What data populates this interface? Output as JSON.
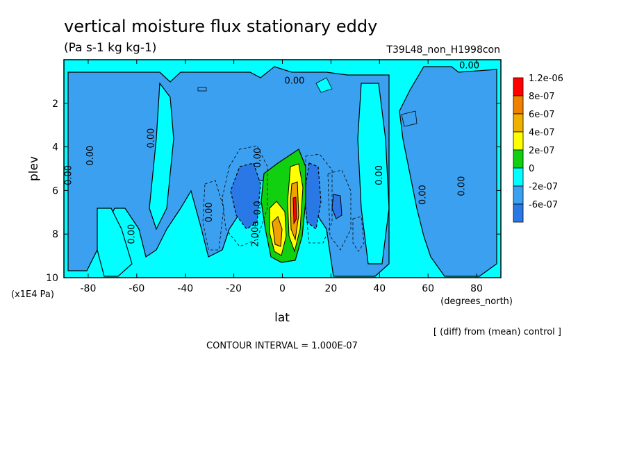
{
  "header": {
    "title": "vertical moisture flux stationary eddy",
    "units": "(Pa s-1 kg kg-1)",
    "experiment": "T39L48_non_H1998con"
  },
  "footer": {
    "diff_note": "[ (diff) from (mean) control ]",
    "contour_interval": "CONTOUR INTERVAL = 1.000E-07"
  },
  "colors": {
    "cyan": "#00ffff",
    "blue_mid": "#3ca0f0",
    "blue_dark": "#2a78e6",
    "green": "#10d010",
    "yellow": "#ffff00",
    "orange": "#f0a000",
    "red": "#ff0000"
  },
  "chart_data": {
    "type": "contour",
    "title": "vertical moisture flux stationary eddy",
    "xlabel": "lat",
    "xunits": "(degrees_north)",
    "ylabel": "plev",
    "yunits": "(x1E4 Pa)",
    "xlim": [
      -90,
      90
    ],
    "ylim": [
      10,
      0
    ],
    "xticks": [
      -80,
      -60,
      -40,
      -20,
      0,
      20,
      40,
      60,
      80
    ],
    "yticks": [
      2,
      4,
      6,
      8,
      10
    ],
    "legend": {
      "placement": "right",
      "entries": [
        {
          "label": "1.2e-06",
          "color": "#ff0000"
        },
        {
          "label": "8e-07",
          "color": "#f08000"
        },
        {
          "label": "6e-07",
          "color": "#f0b000"
        },
        {
          "label": "4e-07",
          "color": "#ffff00"
        },
        {
          "label": "2e-07",
          "color": "#10d010"
        },
        {
          "label": "0",
          "color": "#00ffff"
        },
        {
          "label": "-2e-07",
          "color": "#3ca0f0"
        },
        {
          "label": "-6e-07",
          "color": "#2a78e6"
        }
      ]
    },
    "contour_labels": [
      {
        "text": "0.00",
        "lat": 77,
        "plev": 0.4
      },
      {
        "text": "0.00",
        "lat": 5,
        "plev": 1.1
      },
      {
        "text": "0.00",
        "lat": -87,
        "plev": 5.3
      },
      {
        "text": "0.00",
        "lat": -78,
        "plev": 4.4
      },
      {
        "text": "0.00",
        "lat": -53,
        "plev": 3.6
      },
      {
        "text": "0.00",
        "lat": -29,
        "plev": 7.0
      },
      {
        "text": "0.00",
        "lat": -61,
        "plev": 8.0
      },
      {
        "text": "0.00",
        "lat": -9,
        "plev": 4.5
      },
      {
        "text": "0.00",
        "lat": 41,
        "plev": 5.3
      },
      {
        "text": "0.00",
        "lat": 59,
        "plev": 6.2
      },
      {
        "text": "0.00",
        "lat": 75,
        "plev": 5.8
      },
      {
        "text": "0.0",
        "lat": -9,
        "plev": 6.8
      },
      {
        "text": "2.00e",
        "lat": -10,
        "plev": 8.0
      }
    ]
  }
}
